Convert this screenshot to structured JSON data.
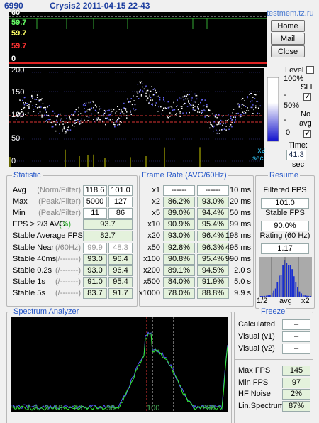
{
  "title": {
    "id": "6990",
    "name": "Crysis2 2011-04-15 22-43",
    "site": "testmem.tz.ru"
  },
  "top_graph": {
    "labels": [
      "60",
      "59.7",
      "59.7",
      "59.7",
      "0"
    ]
  },
  "buttons": [
    "Home",
    "Mail",
    "Close"
  ],
  "main_graph": {
    "labels": [
      "200",
      "150",
      "100",
      "50",
      "0"
    ],
    "scale": "x2",
    "scale_unit": "sec"
  },
  "level": {
    "label": "Level",
    "top": "100%",
    "sli": "SLI",
    "mid": "50%",
    "no": "No",
    "avg": "avg",
    "bottom": "0",
    "time_label": "Time:",
    "time": "41.3",
    "time_unit": "sec"
  },
  "statistic": {
    "title": "Statistic",
    "rows": [
      {
        "label": "Avg",
        "note": "(Norm/Filter)",
        "values": [
          "118.6",
          "101.0"
        ]
      },
      {
        "label": "Max",
        "note": "(Peak/Filter)",
        "values": [
          "5000",
          "127"
        ]
      },
      {
        "label": "Min",
        "note": "(Peak/Filter)",
        "values": [
          "11",
          "86"
        ]
      },
      {
        "label": "FPS > 2/3 AVG",
        "note": "(%)",
        "values": [
          "93.7"
        ]
      },
      {
        "label": "Stable Average FPS",
        "values": [
          "82.7"
        ]
      },
      {
        "label": "Stable Near",
        "note": "(/60Hz)",
        "values": [
          "99.9",
          "48.3"
        ]
      },
      {
        "label": "Stable 40ms",
        "note": "(/-------)",
        "values": [
          "93.0",
          "96.4"
        ]
      },
      {
        "label": "Stable 0.2s",
        "note": "(/-------)",
        "values": [
          "93.0",
          "96.4"
        ]
      },
      {
        "label": "Stable 1s",
        "note": "(/-------)",
        "values": [
          "91.0",
          "95.4"
        ]
      },
      {
        "label": "Stable 5s",
        "note": "(/-------)",
        "values": [
          "83.7",
          "91.7"
        ]
      }
    ]
  },
  "frame_rate": {
    "title": "Frame Rate (AVG/60Hz)",
    "rows": [
      [
        "x1",
        "------",
        "------",
        "10 ms"
      ],
      [
        "x2",
        "86.2%",
        "93.0%",
        "20 ms"
      ],
      [
        "x5",
        "89.0%",
        "94.4%",
        "50 ms"
      ],
      [
        "x10",
        "90.9%",
        "95.4%",
        "99 ms"
      ],
      [
        "x20",
        "93.0%",
        "96.4%",
        "198 ms"
      ],
      [
        "x50",
        "92.8%",
        "96.3%",
        "495 ms"
      ],
      [
        "x100",
        "90.8%",
        "95.4%",
        "990 ms"
      ],
      [
        "x200",
        "89.1%",
        "94.5%",
        "2.0 s"
      ],
      [
        "x500",
        "84.0%",
        "91.9%",
        "5.0 s"
      ],
      [
        "x1000",
        "78.0%",
        "88.8%",
        "9.9 s"
      ]
    ]
  },
  "resume": {
    "title": "Resume",
    "items": [
      [
        "Filtered FPS",
        "101.0"
      ],
      [
        "Stable FPS",
        "90.0%"
      ],
      [
        "Rating (60 Hz)",
        "1.17"
      ]
    ],
    "axis": [
      "1/2",
      "avg",
      "x2"
    ]
  },
  "spectrum": {
    "title": "Spectrum Analyzer",
    "xlabels": [
      "1",
      "2",
      "5",
      "10",
      "20",
      "50",
      "100",
      "200"
    ]
  },
  "freeze": {
    "title": "Freeze",
    "rows": [
      [
        "Calculated",
        "–"
      ],
      [
        "Visual  (v1)",
        "–"
      ],
      [
        "Visual  (v2)",
        "–"
      ]
    ],
    "stats": [
      [
        "Max FPS",
        "145"
      ],
      [
        "Min  FPS",
        "97"
      ],
      [
        "HF Noise",
        "2%"
      ],
      [
        "Lin.Spectrum",
        "87%"
      ]
    ]
  }
}
